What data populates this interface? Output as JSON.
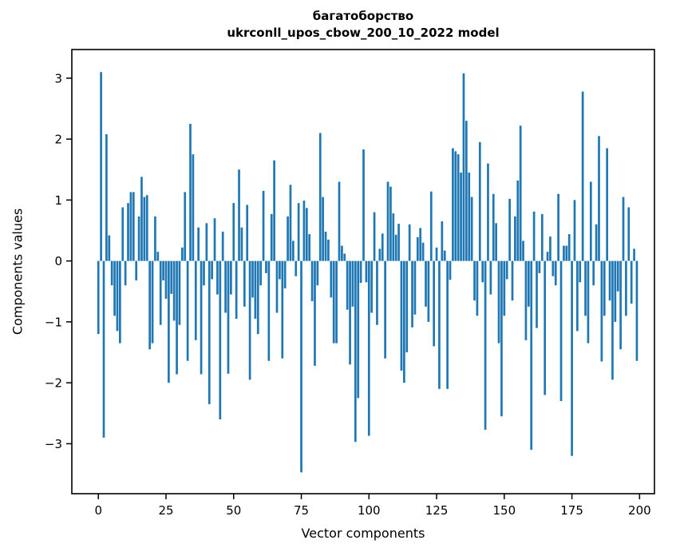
{
  "figure": {
    "title_line1": "багатоборство",
    "title_line2": "ukrconll_upos_cbow_200_10_2022 model"
  },
  "chart_data": {
    "type": "bar",
    "title": "багатоборство\nukrconll_upos_cbow_200_10_2022 model",
    "xlabel": "Vector components",
    "ylabel": "Components values",
    "bar_color": "#1f77b4",
    "axis_color": "#000000",
    "background": "#ffffff",
    "grid": false,
    "n_components": 200,
    "xlim": [
      -9.8,
      205.5
    ],
    "ylim": [
      -3.82,
      3.47
    ],
    "x_ticks": [
      0,
      25,
      50,
      75,
      100,
      125,
      150,
      175,
      200
    ],
    "x_tick_labels": [
      "0",
      "25",
      "50",
      "75",
      "100",
      "125",
      "150",
      "175",
      "200"
    ],
    "y_ticks": [
      3,
      2,
      1,
      0,
      -1,
      -2,
      -3
    ],
    "y_tick_labels": [
      "3",
      "2",
      "1",
      "0",
      "−1",
      "−2",
      "−3"
    ],
    "values": [
      -1.2,
      3.1,
      -2.9,
      2.08,
      0.42,
      -0.4,
      -0.9,
      -1.15,
      -1.35,
      0.88,
      -0.4,
      0.95,
      1.13,
      1.13,
      -0.32,
      0.73,
      1.38,
      1.05,
      1.08,
      -1.45,
      -1.35,
      0.73,
      0.15,
      -1.05,
      -0.32,
      -0.62,
      -2.0,
      -0.54,
      -0.98,
      -1.86,
      -1.05,
      0.22,
      1.13,
      -1.64,
      2.25,
      1.75,
      -1.3,
      0.55,
      -1.86,
      -0.4,
      0.62,
      -2.35,
      -0.3,
      0.7,
      -0.55,
      -2.6,
      0.48,
      -0.85,
      -1.85,
      -0.55,
      0.95,
      -0.95,
      1.5,
      0.55,
      -0.75,
      0.92,
      -1.95,
      -0.6,
      -0.95,
      -1.2,
      -0.4,
      1.15,
      -0.2,
      -1.64,
      0.77,
      1.65,
      -0.85,
      -0.3,
      -1.6,
      -0.45,
      0.73,
      1.25,
      0.33,
      -0.25,
      0.95,
      -3.47,
      0.99,
      0.87,
      0.44,
      -0.66,
      -1.72,
      -0.4,
      2.1,
      1.05,
      0.48,
      0.35,
      -0.6,
      -1.35,
      -1.35,
      1.3,
      0.25,
      0.12,
      -0.8,
      -1.7,
      -0.75,
      -2.97,
      -2.25,
      -0.36,
      1.83,
      -0.35,
      -2.87,
      -0.85,
      0.8,
      -1.05,
      0.2,
      0.45,
      -1.6,
      1.3,
      1.22,
      0.78,
      0.43,
      0.61,
      -1.8,
      -2.0,
      -1.5,
      0.6,
      -1.09,
      -0.88,
      0.39,
      0.54,
      0.3,
      -0.75,
      -1.0,
      1.14,
      -1.4,
      0.22,
      -2.1,
      0.65,
      0.17,
      -2.1,
      -0.31,
      1.85,
      1.8,
      1.75,
      1.45,
      3.08,
      2.3,
      1.45,
      1.05,
      -0.65,
      -0.9,
      1.95,
      -0.35,
      -2.77,
      1.6,
      -0.55,
      1.1,
      0.62,
      -1.35,
      -2.55,
      -0.9,
      -0.3,
      1.02,
      -0.65,
      0.73,
      1.32,
      2.22,
      0.33,
      -1.3,
      -0.75,
      -3.1,
      0.81,
      -1.1,
      -0.2,
      0.77,
      -2.2,
      0.15,
      0.4,
      -0.25,
      -0.4,
      1.1,
      -2.3,
      0.25,
      0.25,
      0.44,
      -3.2,
      1.0,
      -1.15,
      -0.35,
      2.78,
      -0.9,
      -1.35,
      1.3,
      -0.4,
      0.6,
      2.05,
      -1.65,
      -0.9,
      1.85,
      -0.65,
      -1.95,
      -1.0,
      -0.5,
      -1.45,
      1.05,
      -0.9,
      0.88,
      -0.7,
      0.2,
      -1.64
    ]
  }
}
